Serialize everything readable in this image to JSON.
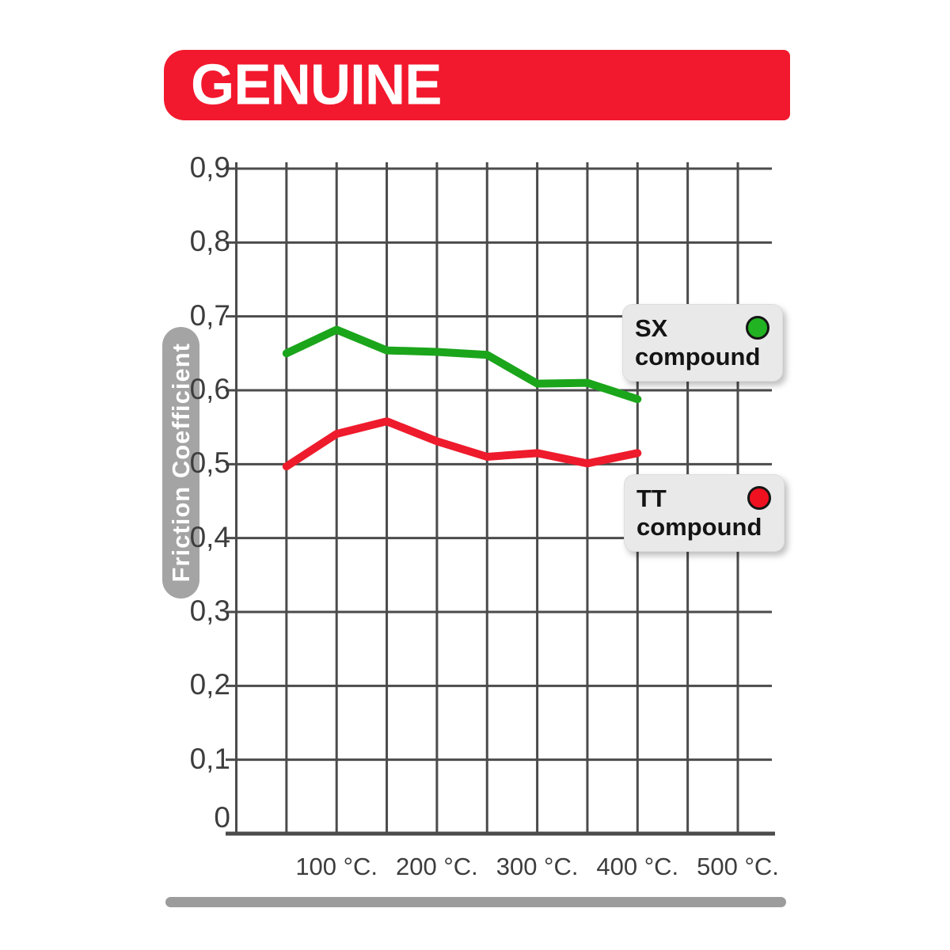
{
  "banner": {
    "title": "GENUINE",
    "bg_color": "#f2192e",
    "text_color": "#ffffff"
  },
  "chart_data": {
    "type": "line",
    "ylabel": "Friction Coefficient",
    "x_axis_unit": "°C",
    "x": [
      50,
      100,
      150,
      200,
      250,
      300,
      350,
      400
    ],
    "series": [
      {
        "name": "SX compound",
        "color": "#1ba51b",
        "values": [
          0.65,
          0.682,
          0.654,
          0.652,
          0.648,
          0.609,
          0.61,
          0.588
        ]
      },
      {
        "name": "TT compound",
        "color": "#ee1b2c",
        "values": [
          0.497,
          0.541,
          0.558,
          0.531,
          0.51,
          0.515,
          0.501,
          0.515
        ]
      }
    ],
    "ylim": [
      0,
      0.9
    ],
    "xlim_temp": [
      0,
      500
    ],
    "grid": true,
    "grid_step_x_deg": 50,
    "grid_step_y": 0.1,
    "grid_color": "#4b4b4b",
    "tick_label_color": "#3d3d3d",
    "y_ticks": [
      "0,9",
      "0,8",
      "0,7",
      "0,6",
      "0,5",
      "0,4",
      "0,3",
      "0,2",
      "0,1",
      "0"
    ],
    "x_tick_values": [
      100,
      200,
      300,
      400,
      500
    ],
    "x_tick_labels": [
      "100 °C.",
      "200 °C.",
      "300 °C.",
      "400 °C.",
      "500 °C."
    ],
    "legend_position": "right-on-plot",
    "legend": [
      {
        "line1": "SX",
        "line2": "compound",
        "dot_color": "#22b322"
      },
      {
        "line1": "TT",
        "line2": "compound",
        "dot_color": "#f01120"
      }
    ]
  }
}
